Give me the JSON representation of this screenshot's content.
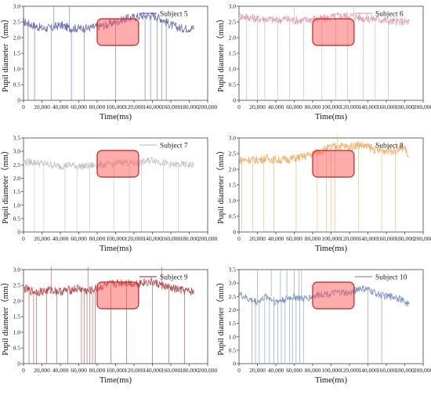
{
  "chart_data": [
    {
      "type": "line",
      "legend": "Subject 5",
      "legend_placement": "top-right",
      "color": "#6a6fb3",
      "xlabel": "Time(ms)",
      "ylabel": "Pupil diameter（mm）",
      "xlim": [
        0,
        200000
      ],
      "ylim": [
        0,
        3.0
      ],
      "x_ticks": [
        0,
        20000,
        40000,
        60000,
        80000,
        100000,
        120000,
        140000,
        160000,
        180000,
        200000
      ],
      "x_tick_labels": [
        "0",
        "20,000",
        "40,000",
        "60,000",
        "80,000",
        "100,000",
        "120,000",
        "140,000",
        "160,000",
        "180,000",
        "200,000"
      ],
      "y_ticks": [
        0,
        0.5,
        1.0,
        1.5,
        2.0,
        2.5,
        3.0
      ],
      "y_tick_labels": [
        "0",
        "0.5",
        "1.0",
        "1.5",
        "2.0",
        "2.5",
        "3.0"
      ],
      "highlight_range": [
        80000,
        125000
      ],
      "x": [
        0,
        10000,
        20000,
        30000,
        40000,
        50000,
        60000,
        70000,
        80000,
        90000,
        100000,
        110000,
        120000,
        130000,
        140000,
        150000,
        160000,
        170000,
        180000,
        185000
      ],
      "y": [
        2.5,
        2.4,
        2.3,
        2.3,
        2.4,
        2.3,
        2.3,
        2.3,
        2.35,
        2.4,
        2.5,
        2.6,
        2.65,
        2.7,
        2.7,
        2.6,
        2.4,
        2.3,
        2.3,
        2.3
      ],
      "blink_drops": [
        {
          "x": 5000,
          "y": 0
        },
        {
          "x": 12000,
          "y": 0
        },
        {
          "x": 30000,
          "y": 0
        },
        {
          "x": 52000,
          "y": 0
        },
        {
          "x": 66000,
          "y": 0
        },
        {
          "x": 100000,
          "y": 0
        },
        {
          "x": 132000,
          "y": 0
        },
        {
          "x": 138000,
          "y": 0
        },
        {
          "x": 145000,
          "y": 0
        },
        {
          "x": 150000,
          "y": 0
        },
        {
          "x": 155000,
          "y": 0
        }
      ],
      "spikes": [
        {
          "x": 33000,
          "y": 3.0
        },
        {
          "x": 50000,
          "y": 3.0
        }
      ]
    },
    {
      "type": "line",
      "legend": "Subject 6",
      "legend_placement": "top-right",
      "color": "#e0a3b0",
      "xlabel": "Time(ms)",
      "ylabel": "Pupil diameter（mm）",
      "xlim": [
        0,
        200000
      ],
      "ylim": [
        0,
        3.0
      ],
      "x_ticks": [
        0,
        20000,
        40000,
        60000,
        80000,
        100000,
        120000,
        140000,
        160000,
        180000,
        200000
      ],
      "x_tick_labels": [
        "0",
        "20,000",
        "40,000",
        "60,000",
        "80,000",
        "100,000",
        "120,000",
        "140,000",
        "160,000",
        "180,000",
        "200,000"
      ],
      "y_ticks": [
        0,
        0.5,
        1.0,
        1.5,
        2.0,
        2.5,
        3.0
      ],
      "y_tick_labels": [
        "0",
        "0.5",
        "1.0",
        "1.5",
        "2.0",
        "2.5",
        "3.0"
      ],
      "highlight_range": [
        80000,
        125000
      ],
      "x": [
        0,
        10000,
        20000,
        30000,
        40000,
        50000,
        60000,
        70000,
        80000,
        90000,
        100000,
        110000,
        120000,
        130000,
        140000,
        150000,
        160000,
        170000,
        180000,
        185000
      ],
      "y": [
        2.7,
        2.65,
        2.6,
        2.6,
        2.55,
        2.6,
        2.55,
        2.55,
        2.6,
        2.6,
        2.65,
        2.7,
        2.7,
        2.65,
        2.6,
        2.6,
        2.55,
        2.5,
        2.5,
        2.5
      ],
      "blink_drops": [
        {
          "x": 8000,
          "y": 0
        },
        {
          "x": 20000,
          "y": 0
        },
        {
          "x": 28000,
          "y": 0
        },
        {
          "x": 42000,
          "y": 0
        },
        {
          "x": 55000,
          "y": 0
        },
        {
          "x": 70000,
          "y": 0
        },
        {
          "x": 90000,
          "y": 0
        },
        {
          "x": 105000,
          "y": 0
        },
        {
          "x": 118000,
          "y": 0
        },
        {
          "x": 135000,
          "y": 0
        },
        {
          "x": 148000,
          "y": 0
        },
        {
          "x": 162000,
          "y": 0
        }
      ],
      "spikes": [
        {
          "x": 60000,
          "y": 3.0
        },
        {
          "x": 125000,
          "y": 3.0
        }
      ]
    },
    {
      "type": "line",
      "legend": "Subject 7",
      "legend_placement": "top-right",
      "color": "#c2c2c2",
      "xlabel": "Time(ms)",
      "ylabel": "Pupil diameter（mm）",
      "xlim": [
        0,
        200000
      ],
      "ylim": [
        0,
        3.5
      ],
      "x_ticks": [
        0,
        20000,
        40000,
        60000,
        80000,
        100000,
        120000,
        140000,
        160000,
        180000,
        200000
      ],
      "x_tick_labels": [
        "0",
        "20,000",
        "40,000",
        "60,000",
        "80,000",
        "100,000",
        "120,000",
        "140,000",
        "160,000",
        "180,000",
        "200,000"
      ],
      "y_ticks": [
        0,
        0.5,
        1.0,
        1.5,
        2.0,
        2.5,
        3.0,
        3.5
      ],
      "y_tick_labels": [
        "0",
        "0.5",
        "1.0",
        "1.5",
        "2.0",
        "2.5",
        "3.0",
        "3.5"
      ],
      "highlight_range": [
        80000,
        125000
      ],
      "x": [
        0,
        10000,
        20000,
        30000,
        40000,
        50000,
        60000,
        70000,
        80000,
        90000,
        100000,
        110000,
        120000,
        130000,
        140000,
        150000,
        160000,
        170000,
        180000,
        185000
      ],
      "y": [
        2.6,
        2.6,
        2.55,
        2.5,
        2.45,
        2.5,
        2.45,
        2.45,
        2.5,
        2.5,
        2.55,
        2.6,
        2.55,
        2.6,
        2.7,
        2.6,
        2.5,
        2.5,
        2.5,
        2.5
      ],
      "blink_drops": [
        {
          "x": 12000,
          "y": 0
        },
        {
          "x": 22000,
          "y": 0
        },
        {
          "x": 45000,
          "y": 0
        },
        {
          "x": 58000,
          "y": 0
        },
        {
          "x": 72000,
          "y": 0
        },
        {
          "x": 98000,
          "y": 0
        },
        {
          "x": 115000,
          "y": 0
        },
        {
          "x": 128000,
          "y": 0
        },
        {
          "x": 152000,
          "y": 0
        },
        {
          "x": 168000,
          "y": 0
        }
      ],
      "spikes": []
    },
    {
      "type": "line",
      "legend": "Subject 8",
      "legend_placement": "top-right",
      "color": "#f3b06a",
      "xlabel": "Time(ms)",
      "ylabel": "Pupil diameter（mm）",
      "xlim": [
        0,
        200000
      ],
      "ylim": [
        0,
        3.0
      ],
      "x_ticks": [
        0,
        20000,
        40000,
        60000,
        80000,
        100000,
        120000,
        140000,
        160000,
        180000,
        200000
      ],
      "x_tick_labels": [
        "0",
        "20,000",
        "40,000",
        "60,000",
        "80,000",
        "100,000",
        "120,000",
        "140,000",
        "160,000",
        "180,000",
        "200,000"
      ],
      "y_ticks": [
        0,
        0.5,
        1.0,
        1.5,
        2.0,
        2.5,
        3.0
      ],
      "y_tick_labels": [
        "0",
        "0.5",
        "1.0",
        "1.5",
        "2.0",
        "2.5",
        "3.0"
      ],
      "highlight_range": [
        80000,
        125000
      ],
      "x": [
        0,
        10000,
        20000,
        30000,
        40000,
        50000,
        60000,
        70000,
        80000,
        90000,
        100000,
        110000,
        120000,
        130000,
        140000,
        150000,
        160000,
        170000,
        180000,
        185000
      ],
      "y": [
        2.3,
        2.3,
        2.3,
        2.35,
        2.3,
        2.3,
        2.35,
        2.4,
        2.5,
        2.6,
        2.7,
        2.75,
        2.7,
        2.8,
        2.7,
        2.6,
        2.6,
        2.6,
        2.7,
        2.3
      ],
      "blink_drops": [
        {
          "x": 3000,
          "y": 0
        },
        {
          "x": 15000,
          "y": 0
        },
        {
          "x": 27000,
          "y": 0
        },
        {
          "x": 38000,
          "y": 0
        },
        {
          "x": 62000,
          "y": 0
        },
        {
          "x": 85000,
          "y": 0
        },
        {
          "x": 95000,
          "y": 0
        },
        {
          "x": 100000,
          "y": 0
        },
        {
          "x": 104000,
          "y": 0
        },
        {
          "x": 130000,
          "y": 0
        },
        {
          "x": 155000,
          "y": 0
        },
        {
          "x": 170000,
          "y": 0
        }
      ],
      "spikes": [
        {
          "x": 107000,
          "y": 3.1
        }
      ]
    },
    {
      "type": "line",
      "legend": "Subject 9",
      "legend_placement": "top-right",
      "color": "#b5484a",
      "xlabel": "Time(ms)",
      "ylabel": "Pupil diameter（mm）",
      "xlim": [
        0,
        200000
      ],
      "ylim": [
        0,
        3.0
      ],
      "x_ticks": [
        0,
        20000,
        40000,
        60000,
        80000,
        100000,
        120000,
        140000,
        160000,
        180000,
        200000
      ],
      "x_tick_labels": [
        "0",
        "20,000",
        "40,000",
        "60,000",
        "80,000",
        "100,000",
        "120,000",
        "140,000",
        "160,000",
        "180,000",
        "200,000"
      ],
      "y_ticks": [
        0,
        0.5,
        1.0,
        1.5,
        2.0,
        2.5,
        3.0
      ],
      "y_tick_labels": [
        "0",
        "0.5",
        "1.0",
        "1.5",
        "2.0",
        "2.5",
        "3.0"
      ],
      "highlight_range": [
        80000,
        125000
      ],
      "x": [
        0,
        10000,
        20000,
        30000,
        40000,
        50000,
        60000,
        70000,
        80000,
        90000,
        100000,
        110000,
        120000,
        130000,
        140000,
        150000,
        160000,
        170000,
        180000,
        185000
      ],
      "y": [
        2.4,
        2.3,
        2.3,
        2.35,
        2.3,
        2.35,
        2.4,
        2.3,
        2.4,
        2.5,
        2.55,
        2.6,
        2.55,
        2.6,
        2.6,
        2.5,
        2.4,
        2.35,
        2.3,
        2.3
      ],
      "blink_drops": [
        {
          "x": 6000,
          "y": 0
        },
        {
          "x": 11000,
          "y": 0
        },
        {
          "x": 14000,
          "y": 0
        },
        {
          "x": 25000,
          "y": 0
        },
        {
          "x": 36000,
          "y": 0
        },
        {
          "x": 48000,
          "y": 0
        },
        {
          "x": 63000,
          "y": 0
        },
        {
          "x": 66000,
          "y": 0
        },
        {
          "x": 69000,
          "y": 0
        },
        {
          "x": 72000,
          "y": 0
        },
        {
          "x": 75000,
          "y": 0
        },
        {
          "x": 78000,
          "y": 0
        },
        {
          "x": 95000,
          "y": 0
        },
        {
          "x": 112000,
          "y": 0
        },
        {
          "x": 140000,
          "y": 0
        },
        {
          "x": 158000,
          "y": 0
        },
        {
          "x": 175000,
          "y": 0
        }
      ],
      "spikes": [
        {
          "x": 30000,
          "y": 3.1
        },
        {
          "x": 70000,
          "y": 3.1
        },
        {
          "x": 150000,
          "y": 3.1
        }
      ]
    },
    {
      "type": "line",
      "legend": "Subject 10",
      "legend_placement": "top-right",
      "color": "#7d92c4",
      "xlabel": "Time(ms)",
      "ylabel": "Pupil diameter（mm）",
      "xlim": [
        0,
        200000
      ],
      "ylim": [
        0,
        3.5
      ],
      "x_ticks": [
        0,
        20000,
        40000,
        60000,
        80000,
        100000,
        120000,
        140000,
        160000,
        180000,
        200000
      ],
      "x_tick_labels": [
        "0",
        "20,000",
        "40,000",
        "60,000",
        "80,000",
        "100,000",
        "120,000",
        "140,000",
        "160,000",
        "180,000",
        "200,000"
      ],
      "y_ticks": [
        0,
        0.5,
        1.0,
        1.5,
        2.0,
        2.5,
        3.0,
        3.5
      ],
      "y_tick_labels": [
        "0",
        "0.5",
        "1.0",
        "1.5",
        "2.0",
        "2.5",
        "3.0",
        "3.5"
      ],
      "highlight_range": [
        80000,
        125000
      ],
      "x": [
        0,
        10000,
        20000,
        30000,
        40000,
        50000,
        60000,
        70000,
        80000,
        90000,
        100000,
        110000,
        120000,
        130000,
        140000,
        150000,
        160000,
        170000,
        180000,
        185000
      ],
      "y": [
        2.6,
        2.4,
        2.3,
        2.5,
        2.3,
        2.4,
        2.5,
        2.4,
        2.5,
        2.6,
        2.6,
        2.65,
        2.6,
        2.8,
        2.75,
        2.6,
        2.5,
        2.5,
        2.3,
        2.2
      ],
      "blink_drops": [
        {
          "x": 14000,
          "y": 0
        },
        {
          "x": 18000,
          "y": 0
        },
        {
          "x": 22000,
          "y": 0
        },
        {
          "x": 28000,
          "y": 0
        },
        {
          "x": 33000,
          "y": 0
        },
        {
          "x": 38000,
          "y": 0
        },
        {
          "x": 42000,
          "y": 0
        },
        {
          "x": 46000,
          "y": 0
        },
        {
          "x": 50000,
          "y": 0
        },
        {
          "x": 55000,
          "y": 0
        },
        {
          "x": 58000,
          "y": 0
        },
        {
          "x": 62000,
          "y": 0
        },
        {
          "x": 66000,
          "y": 0
        },
        {
          "x": 70000,
          "y": 0
        },
        {
          "x": 140000,
          "y": 0
        },
        {
          "x": 155000,
          "y": 0
        }
      ],
      "spikes": [
        {
          "x": 20000,
          "y": 3.5
        },
        {
          "x": 35000,
          "y": 3.5
        },
        {
          "x": 45000,
          "y": 3.5
        },
        {
          "x": 52000,
          "y": 3.5
        },
        {
          "x": 60000,
          "y": 3.5
        },
        {
          "x": 65000,
          "y": 3.5
        },
        {
          "x": 68000,
          "y": 3.5
        }
      ]
    }
  ]
}
